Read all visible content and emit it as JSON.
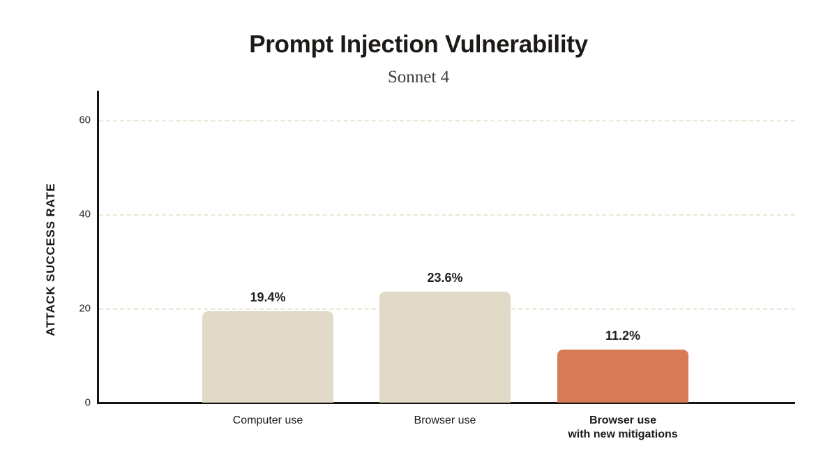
{
  "header": {
    "title": "Prompt Injection Vulnerability",
    "subtitle": "Sonnet 4"
  },
  "chart_data": {
    "type": "bar",
    "title": "Prompt Injection Vulnerability",
    "subtitle": "Sonnet 4",
    "xlabel": "",
    "ylabel": "ATTACK SUCCESS RATE",
    "ylim": [
      0,
      66
    ],
    "yticks": [
      0,
      20,
      40,
      60
    ],
    "grid": "horizontal-dashed",
    "gridline_color": "#ece7d7",
    "axis_color": "#161412",
    "categories": [
      "Computer use",
      "Browser use",
      "Browser use\nwith new mitigations"
    ],
    "category_emphasis": [
      false,
      false,
      true
    ],
    "values": [
      19.4,
      23.6,
      11.2
    ],
    "value_labels": [
      "19.4%",
      "23.6%",
      "11.2%"
    ],
    "bar_colors": [
      "#e1dac8",
      "#e1dac8",
      "#d87a55"
    ],
    "legend": "none"
  }
}
